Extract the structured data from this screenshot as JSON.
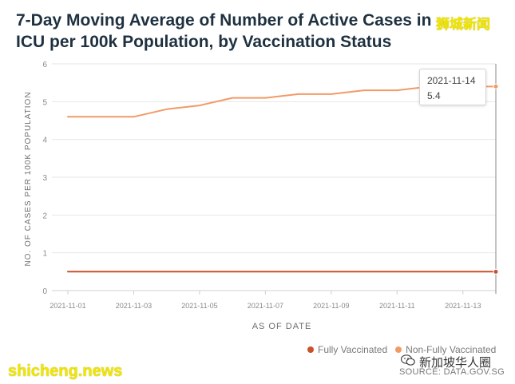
{
  "title": "7-Day Moving Average of Number of Active Cases in ICU per 100k Population, by Vaccination Status",
  "watermarks": {
    "top": "狮城新闻",
    "bottom": "shicheng.news",
    "wechat": "新加坡华人圈"
  },
  "source": "SOURCE: DATA.GOV.SG",
  "tooltip": {
    "date": "2021-11-14",
    "value": "5.4"
  },
  "colors": {
    "fully": "#c9512b",
    "non_fully": "#f29a66",
    "grid": "#e6e6e6",
    "crosshair": "#8a8a8a"
  },
  "chart_data": {
    "type": "line",
    "title": "7-Day Moving Average of Number of Active Cases in ICU per 100k Population, by Vaccination Status",
    "xlabel": "AS OF DATE",
    "ylabel": "NO. OF CASES PER 100K POPULATION",
    "ylim": [
      0,
      6
    ],
    "yticks": [
      0,
      1,
      2,
      3,
      4,
      5,
      6
    ],
    "x": [
      "2021-11-01",
      "2021-11-02",
      "2021-11-03",
      "2021-11-04",
      "2021-11-05",
      "2021-11-06",
      "2021-11-07",
      "2021-11-08",
      "2021-11-09",
      "2021-11-10",
      "2021-11-11",
      "2021-11-12",
      "2021-11-13",
      "2021-11-14"
    ],
    "xtick_labels": [
      "2021-11-01",
      "2021-11-03",
      "2021-11-05",
      "2021-11-07",
      "2021-11-09",
      "2021-11-11",
      "2021-11-13"
    ],
    "series": [
      {
        "name": "Fully Vaccinated",
        "color": "#c9512b",
        "values": [
          0.5,
          0.5,
          0.5,
          0.5,
          0.5,
          0.5,
          0.5,
          0.5,
          0.5,
          0.5,
          0.5,
          0.5,
          0.5,
          0.5
        ]
      },
      {
        "name": "Non-Fully Vaccinated",
        "color": "#f29a66",
        "values": [
          4.6,
          4.6,
          4.6,
          4.8,
          4.9,
          5.1,
          5.1,
          5.2,
          5.2,
          5.3,
          5.3,
          5.4,
          5.4,
          5.4
        ]
      }
    ],
    "grid": true,
    "legend_position": "bottom-right",
    "highlight_x": "2021-11-14"
  }
}
